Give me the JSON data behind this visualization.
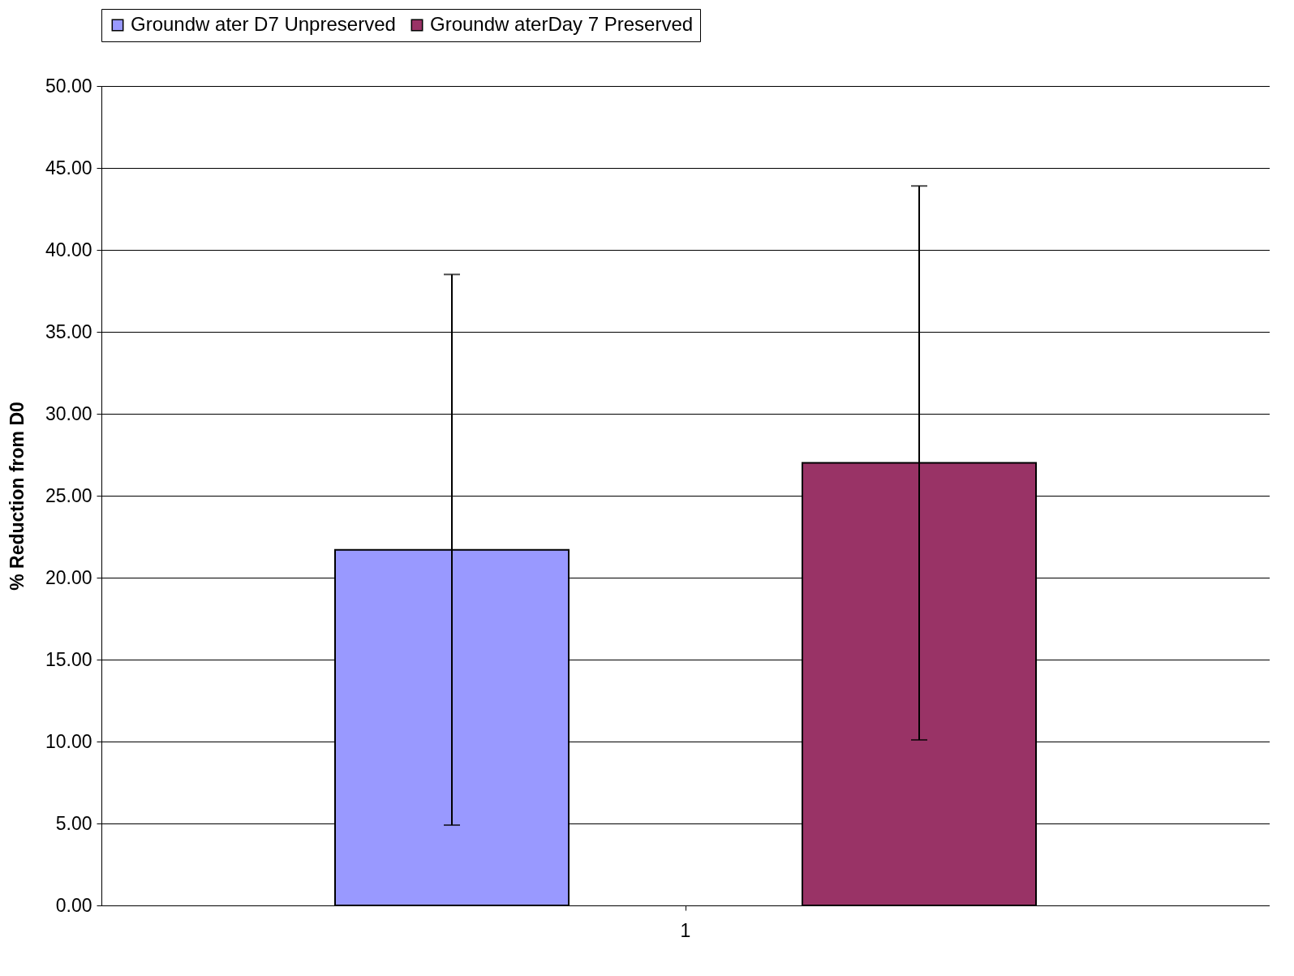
{
  "chart_data": {
    "type": "bar",
    "categories": [
      "1"
    ],
    "ylabel": "% Reduction from D0",
    "ylim": [
      0,
      50
    ],
    "yticks": [
      {
        "value": 0,
        "label": "0.00"
      },
      {
        "value": 5,
        "label": "5.00"
      },
      {
        "value": 10,
        "label": "10.00"
      },
      {
        "value": 15,
        "label": "15.00"
      },
      {
        "value": 20,
        "label": "20.00"
      },
      {
        "value": 25,
        "label": "25.00"
      },
      {
        "value": 30,
        "label": "30.00"
      },
      {
        "value": 35,
        "label": "35.00"
      },
      {
        "value": 40,
        "label": "40.00"
      },
      {
        "value": 45,
        "label": "45.00"
      },
      {
        "value": 50,
        "label": "50.00"
      }
    ],
    "grid": "y",
    "legend": "top",
    "series": [
      {
        "name": "Groundw ater D7 Unpreserved",
        "color": "#9999ff",
        "values": [
          21.7
        ],
        "errors": [
          16.8
        ]
      },
      {
        "name": "Groundw aterDay 7 Preserved",
        "color": "#993366",
        "values": [
          27.0
        ],
        "errors": [
          16.9
        ]
      }
    ]
  }
}
